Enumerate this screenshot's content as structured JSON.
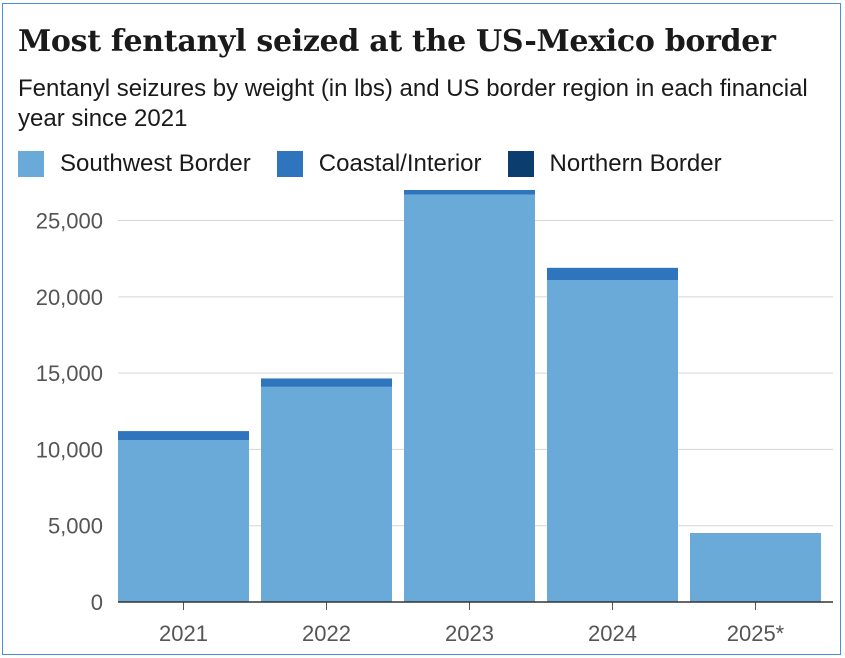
{
  "chart_data": {
    "type": "bar",
    "stacked": true,
    "title": "Most fentanyl seized at the US-Mexico border",
    "subtitle": "Fentanyl seizures by weight (in lbs) and US border region in each financial year since 2021",
    "categories": [
      "2021",
      "2022",
      "2023",
      "2024",
      "2025*"
    ],
    "series": [
      {
        "name": "Southwest Border",
        "color": "#6aaad9",
        "values": [
          10600,
          14100,
          26700,
          21100,
          4450
        ]
      },
      {
        "name": "Coastal/Interior",
        "color": "#2e75bd",
        "values": [
          600,
          550,
          300,
          800,
          50
        ]
      },
      {
        "name": "Northern Border",
        "color": "#0b3d6e",
        "values": [
          0,
          0,
          0,
          0,
          0
        ]
      }
    ],
    "ylim": [
      0,
      27000
    ],
    "yticks": [
      "0",
      "5,000",
      "10,000",
      "15,000",
      "20,000",
      "25,000"
    ],
    "ytick_values": [
      0,
      5000,
      10000,
      15000,
      20000,
      25000
    ],
    "grid": true,
    "legend_position": "top"
  }
}
